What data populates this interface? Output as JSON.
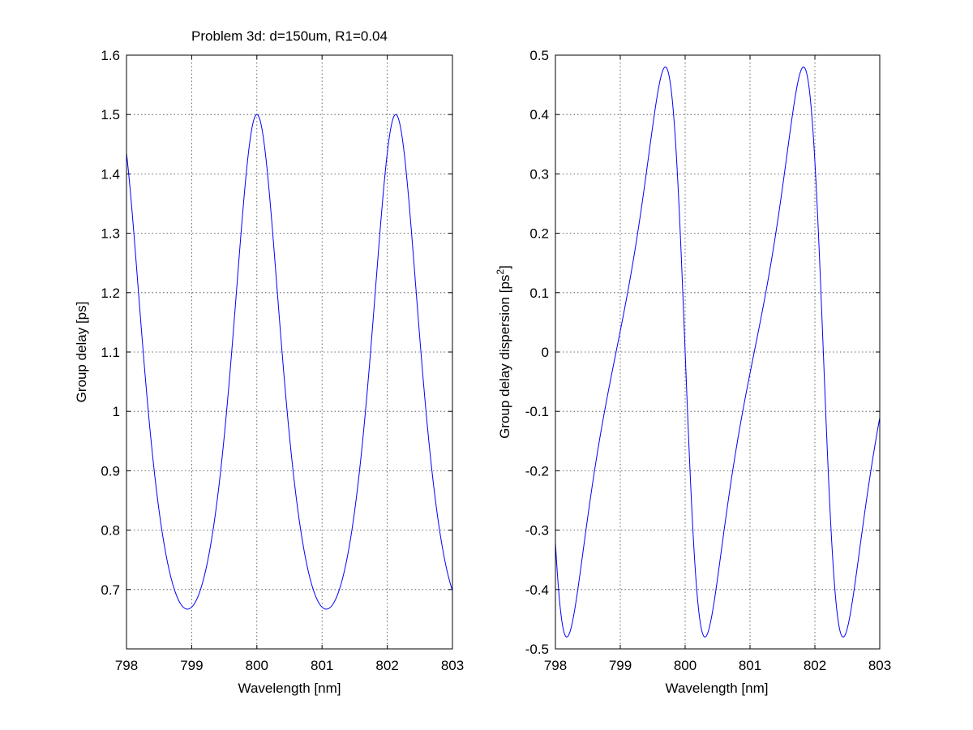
{
  "chart_data": [
    {
      "type": "line",
      "title": "Problem 3d: d=150um, R1=0.04",
      "xlabel": "Wavelength [nm]",
      "ylabel": "Group delay [ps]",
      "xlim": [
        798,
        803
      ],
      "ylim": [
        0.6,
        1.6
      ],
      "xticks": [
        "798",
        "799",
        "800",
        "801",
        "802",
        "803"
      ],
      "yticks": [
        "0.7",
        "0.8",
        "0.9",
        "1",
        "1.1",
        "1.2",
        "1.3",
        "1.4",
        "1.5",
        "1.6"
      ],
      "grid": true,
      "series": [
        {
          "name": "group delay",
          "color": "#0000ff",
          "model": {
            "form": "airy",
            "max": 1.5,
            "min": 0.667,
            "period_nm": 2.13,
            "peak_at": 800.0
          },
          "key_points": [
            [
              798,
              1.43
            ],
            [
              798.95,
              0.667
            ],
            [
              800.0,
              1.5
            ],
            [
              801.07,
              0.667
            ],
            [
              802.13,
              1.5
            ],
            [
              803,
              0.7
            ]
          ]
        }
      ]
    },
    {
      "type": "line",
      "title": "",
      "xlabel": "Wavelength [nm]",
      "ylabel": "Group delay dispersion [ps",
      "ylabel_sup": "2",
      "ylabel_end": "]",
      "xlim": [
        798,
        803
      ],
      "ylim": [
        -0.5,
        0.5
      ],
      "xticks": [
        "798",
        "799",
        "800",
        "801",
        "802",
        "803"
      ],
      "yticks": [
        "-0.5",
        "-0.4",
        "-0.3",
        "-0.2",
        "-0.1",
        "0",
        "0.1",
        "0.2",
        "0.3",
        "0.4",
        "0.5"
      ],
      "grid": true,
      "series": [
        {
          "name": "group delay dispersion",
          "color": "#0000ff",
          "model": {
            "form": "derivative of airy",
            "amplitude": 0.48
          },
          "key_points": [
            [
              798,
              -0.34
            ],
            [
              798.15,
              -0.48
            ],
            [
              799.7,
              0.48
            ],
            [
              800.0,
              0.0
            ],
            [
              800.3,
              -0.48
            ],
            [
              801.83,
              0.48
            ],
            [
              802.43,
              -0.48
            ],
            [
              803,
              -0.12
            ]
          ]
        }
      ]
    }
  ]
}
